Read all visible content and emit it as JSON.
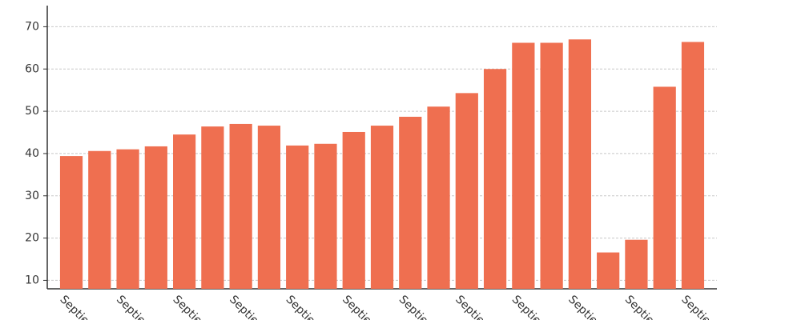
{
  "chart_data": {
    "type": "bar",
    "categories": [
      "Septie",
      null,
      "Septie",
      null,
      "Septie",
      null,
      "Septie",
      null,
      "Septie",
      null,
      "Septie",
      null,
      "Septie",
      null,
      "Septie",
      null,
      "Septie",
      null,
      "Septie",
      null,
      "Septie",
      null,
      "Septie"
    ],
    "values": [
      39.4,
      40.6,
      41.0,
      41.7,
      44.5,
      46.4,
      47.0,
      46.6,
      41.9,
      42.3,
      45.1,
      46.6,
      48.7,
      51.1,
      54.3,
      60.0,
      66.2,
      66.2,
      67.0,
      16.6,
      19.6,
      55.8,
      66.4
    ],
    "color": "#ef6f50",
    "ylim": [
      8,
      75
    ],
    "yticks": [
      10,
      20,
      30,
      40,
      50,
      60,
      70
    ],
    "grid": true
  }
}
